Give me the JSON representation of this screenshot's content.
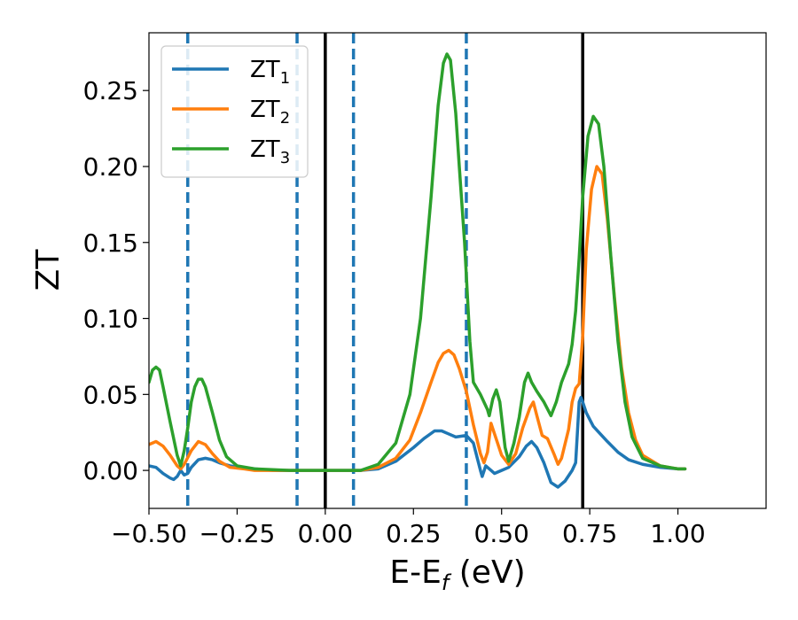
{
  "chart_data": {
    "type": "line",
    "title": "",
    "xlabel": {
      "main": "E-E",
      "sub": "f",
      "suffix": " (eV)"
    },
    "ylabel": "ZT",
    "xlim": [
      -0.5,
      1.25
    ],
    "ylim": [
      -0.025,
      0.288
    ],
    "grid": false,
    "legend_position": "top-left",
    "x_ticks": [
      -0.5,
      -0.25,
      0.0,
      0.25,
      0.5,
      0.75,
      1.0
    ],
    "x_tick_labels": [
      "−0.50",
      "−0.25",
      "0.00",
      "0.25",
      "0.50",
      "0.75",
      "1.00"
    ],
    "y_ticks": [
      0.0,
      0.05,
      0.1,
      0.15,
      0.2,
      0.25
    ],
    "y_tick_labels": [
      "0.00",
      "0.05",
      "0.10",
      "0.15",
      "0.20",
      "0.25"
    ],
    "vertical_lines": [
      {
        "x": -0.39,
        "style": "dashed",
        "color": "#1f77b4"
      },
      {
        "x": -0.08,
        "style": "dashed",
        "color": "#1f77b4"
      },
      {
        "x": 0.08,
        "style": "dashed",
        "color": "#1f77b4"
      },
      {
        "x": 0.4,
        "style": "dashed",
        "color": "#1f77b4"
      },
      {
        "x": 0.0,
        "style": "solid",
        "color": "#000000"
      },
      {
        "x": 0.73,
        "style": "solid",
        "color": "#000000"
      }
    ],
    "series": [
      {
        "name": "ZT",
        "name_sub": "1",
        "color": "#1f77b4",
        "points": [
          [
            -0.5,
            0.003
          ],
          [
            -0.48,
            0.002
          ],
          [
            -0.46,
            -0.002
          ],
          [
            -0.44,
            -0.005
          ],
          [
            -0.43,
            -0.006
          ],
          [
            -0.42,
            -0.004
          ],
          [
            -0.41,
            0.0
          ],
          [
            -0.4,
            -0.003
          ],
          [
            -0.39,
            -0.002
          ],
          [
            -0.38,
            0.002
          ],
          [
            -0.36,
            0.007
          ],
          [
            -0.34,
            0.008
          ],
          [
            -0.32,
            0.007
          ],
          [
            -0.3,
            0.005
          ],
          [
            -0.27,
            0.003
          ],
          [
            -0.24,
            0.002
          ],
          [
            -0.2,
            0.001
          ],
          [
            -0.15,
            0.0
          ],
          [
            -0.1,
            0.0
          ],
          [
            0.0,
            0.0
          ],
          [
            0.1,
            0.0
          ],
          [
            0.15,
            0.001
          ],
          [
            0.2,
            0.006
          ],
          [
            0.25,
            0.015
          ],
          [
            0.28,
            0.021
          ],
          [
            0.31,
            0.026
          ],
          [
            0.33,
            0.026
          ],
          [
            0.35,
            0.024
          ],
          [
            0.37,
            0.022
          ],
          [
            0.4,
            0.023
          ],
          [
            0.42,
            0.018
          ],
          [
            0.44,
            0.0
          ],
          [
            0.445,
            -0.004
          ],
          [
            0.455,
            0.003
          ],
          [
            0.47,
            0.0
          ],
          [
            0.48,
            -0.002
          ],
          [
            0.5,
            0.0
          ],
          [
            0.52,
            0.002
          ],
          [
            0.55,
            0.009
          ],
          [
            0.57,
            0.016
          ],
          [
            0.585,
            0.019
          ],
          [
            0.6,
            0.015
          ],
          [
            0.62,
            0.005
          ],
          [
            0.64,
            -0.008
          ],
          [
            0.66,
            -0.011
          ],
          [
            0.68,
            -0.007
          ],
          [
            0.7,
            0.0
          ],
          [
            0.71,
            0.005
          ],
          [
            0.72,
            0.045
          ],
          [
            0.725,
            0.048
          ],
          [
            0.73,
            0.045
          ],
          [
            0.74,
            0.038
          ],
          [
            0.76,
            0.029
          ],
          [
            0.78,
            0.024
          ],
          [
            0.8,
            0.019
          ],
          [
            0.83,
            0.012
          ],
          [
            0.86,
            0.007
          ],
          [
            0.9,
            0.004
          ],
          [
            0.95,
            0.002
          ],
          [
            1.0,
            0.001
          ],
          [
            1.02,
            0.001
          ]
        ]
      },
      {
        "name": "ZT",
        "name_sub": "2",
        "color": "#ff7f0e",
        "points": [
          [
            -0.5,
            0.017
          ],
          [
            -0.48,
            0.019
          ],
          [
            -0.46,
            0.016
          ],
          [
            -0.44,
            0.01
          ],
          [
            -0.42,
            0.003
          ],
          [
            -0.41,
            0.001
          ],
          [
            -0.4,
            0.004
          ],
          [
            -0.38,
            0.013
          ],
          [
            -0.36,
            0.019
          ],
          [
            -0.34,
            0.017
          ],
          [
            -0.32,
            0.011
          ],
          [
            -0.3,
            0.006
          ],
          [
            -0.27,
            0.002
          ],
          [
            -0.23,
            0.001
          ],
          [
            -0.2,
            0.0
          ],
          [
            -0.1,
            0.0
          ],
          [
            0.0,
            0.0
          ],
          [
            0.1,
            0.0
          ],
          [
            0.15,
            0.002
          ],
          [
            0.2,
            0.008
          ],
          [
            0.24,
            0.02
          ],
          [
            0.27,
            0.038
          ],
          [
            0.3,
            0.058
          ],
          [
            0.32,
            0.071
          ],
          [
            0.335,
            0.077
          ],
          [
            0.35,
            0.079
          ],
          [
            0.365,
            0.076
          ],
          [
            0.38,
            0.067
          ],
          [
            0.4,
            0.052
          ],
          [
            0.42,
            0.03
          ],
          [
            0.44,
            0.011
          ],
          [
            0.45,
            0.005
          ],
          [
            0.46,
            0.012
          ],
          [
            0.47,
            0.031
          ],
          [
            0.48,
            0.024
          ],
          [
            0.5,
            0.01
          ],
          [
            0.52,
            0.004
          ],
          [
            0.54,
            0.011
          ],
          [
            0.56,
            0.028
          ],
          [
            0.58,
            0.041
          ],
          [
            0.59,
            0.045
          ],
          [
            0.6,
            0.036
          ],
          [
            0.615,
            0.023
          ],
          [
            0.63,
            0.021
          ],
          [
            0.65,
            0.01
          ],
          [
            0.66,
            0.004
          ],
          [
            0.67,
            0.008
          ],
          [
            0.69,
            0.027
          ],
          [
            0.7,
            0.045
          ],
          [
            0.71,
            0.054
          ],
          [
            0.72,
            0.057
          ],
          [
            0.73,
            0.088
          ],
          [
            0.74,
            0.145
          ],
          [
            0.755,
            0.185
          ],
          [
            0.77,
            0.2
          ],
          [
            0.785,
            0.195
          ],
          [
            0.8,
            0.165
          ],
          [
            0.82,
            0.114
          ],
          [
            0.84,
            0.068
          ],
          [
            0.86,
            0.038
          ],
          [
            0.88,
            0.02
          ],
          [
            0.9,
            0.01
          ],
          [
            0.95,
            0.003
          ],
          [
            1.0,
            0.001
          ],
          [
            1.02,
            0.001
          ]
        ]
      },
      {
        "name": "ZT",
        "name_sub": "3",
        "color": "#2ca02c",
        "points": [
          [
            -0.5,
            0.058
          ],
          [
            -0.49,
            0.066
          ],
          [
            -0.48,
            0.068
          ],
          [
            -0.47,
            0.066
          ],
          [
            -0.46,
            0.055
          ],
          [
            -0.44,
            0.032
          ],
          [
            -0.42,
            0.01
          ],
          [
            -0.41,
            0.003
          ],
          [
            -0.4,
            0.013
          ],
          [
            -0.39,
            0.028
          ],
          [
            -0.38,
            0.045
          ],
          [
            -0.37,
            0.055
          ],
          [
            -0.36,
            0.06
          ],
          [
            -0.35,
            0.06
          ],
          [
            -0.34,
            0.055
          ],
          [
            -0.32,
            0.038
          ],
          [
            -0.3,
            0.02
          ],
          [
            -0.28,
            0.009
          ],
          [
            -0.25,
            0.003
          ],
          [
            -0.2,
            0.001
          ],
          [
            -0.1,
            0.0
          ],
          [
            0.0,
            0.0
          ],
          [
            0.1,
            0.0
          ],
          [
            0.15,
            0.004
          ],
          [
            0.2,
            0.018
          ],
          [
            0.24,
            0.05
          ],
          [
            0.27,
            0.1
          ],
          [
            0.3,
            0.18
          ],
          [
            0.32,
            0.24
          ],
          [
            0.335,
            0.268
          ],
          [
            0.345,
            0.274
          ],
          [
            0.355,
            0.27
          ],
          [
            0.37,
            0.235
          ],
          [
            0.38,
            0.2
          ],
          [
            0.395,
            0.15
          ],
          [
            0.41,
            0.085
          ],
          [
            0.42,
            0.058
          ],
          [
            0.44,
            0.05
          ],
          [
            0.46,
            0.04
          ],
          [
            0.465,
            0.036
          ],
          [
            0.475,
            0.047
          ],
          [
            0.485,
            0.053
          ],
          [
            0.495,
            0.045
          ],
          [
            0.51,
            0.015
          ],
          [
            0.52,
            0.006
          ],
          [
            0.535,
            0.018
          ],
          [
            0.55,
            0.035
          ],
          [
            0.565,
            0.058
          ],
          [
            0.575,
            0.064
          ],
          [
            0.585,
            0.058
          ],
          [
            0.6,
            0.052
          ],
          [
            0.62,
            0.045
          ],
          [
            0.64,
            0.036
          ],
          [
            0.655,
            0.045
          ],
          [
            0.67,
            0.058
          ],
          [
            0.69,
            0.07
          ],
          [
            0.7,
            0.083
          ],
          [
            0.71,
            0.105
          ],
          [
            0.72,
            0.14
          ],
          [
            0.73,
            0.18
          ],
          [
            0.745,
            0.22
          ],
          [
            0.76,
            0.233
          ],
          [
            0.775,
            0.228
          ],
          [
            0.79,
            0.2
          ],
          [
            0.81,
            0.14
          ],
          [
            0.83,
            0.085
          ],
          [
            0.85,
            0.045
          ],
          [
            0.87,
            0.022
          ],
          [
            0.9,
            0.008
          ],
          [
            0.95,
            0.003
          ],
          [
            1.0,
            0.001
          ],
          [
            1.02,
            0.001
          ]
        ]
      }
    ]
  }
}
